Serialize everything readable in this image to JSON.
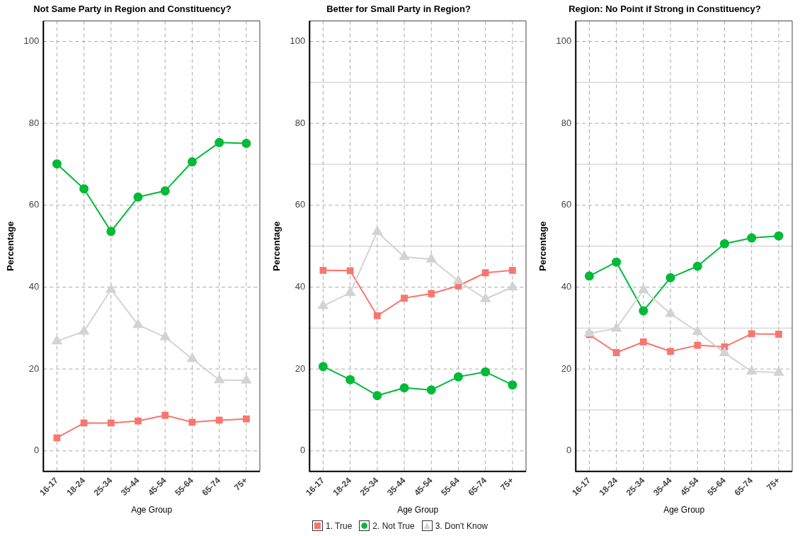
{
  "chart_data": [
    {
      "type": "line",
      "title": "Not Same Party in Region and Constituency?",
      "xlabel": "Age Group",
      "ylabel": "Percentage",
      "categories": [
        "16-17",
        "18-24",
        "25-34",
        "35-44",
        "45-54",
        "55-64",
        "65-74",
        "75+"
      ],
      "series": [
        {
          "name": "1. True",
          "color": "#f8766d",
          "marker": "square",
          "values": [
            3.2,
            6.8,
            6.8,
            7.3,
            8.7,
            7.0,
            7.5,
            7.8
          ]
        },
        {
          "name": "2. Not True",
          "color": "#00ba38",
          "marker": "circle",
          "values": [
            70.1,
            64.0,
            53.6,
            62.0,
            63.5,
            70.6,
            75.3,
            75.1
          ]
        },
        {
          "name": "3. Don't Know",
          "color": "#d3d3d3",
          "marker": "triangle",
          "values": [
            26.8,
            29.2,
            39.4,
            30.8,
            27.8,
            22.5,
            17.3,
            17.2
          ]
        }
      ],
      "ylim": [
        -5,
        105
      ],
      "yticks": [
        0,
        20,
        40,
        60,
        80,
        100
      ],
      "grid": true,
      "legend": "bottom"
    },
    {
      "type": "line",
      "title": "Better for Small Party in Region?",
      "xlabel": "Age Group",
      "ylabel": "Percentage",
      "categories": [
        "16-17",
        "18-24",
        "25-34",
        "35-44",
        "45-54",
        "55-64",
        "65-74",
        "75+"
      ],
      "series": [
        {
          "color": "#f8766d",
          "marker": "square",
          "values": [
            44.1,
            44.0,
            33.0,
            37.3,
            38.4,
            40.3,
            43.5,
            44.1
          ]
        },
        {
          "color": "#00ba38",
          "marker": "circle",
          "values": [
            20.6,
            17.4,
            13.5,
            15.4,
            14.9,
            18.1,
            19.3,
            16.1
          ]
        },
        {
          "color": "#d3d3d3",
          "marker": "triangle",
          "values": [
            35.4,
            38.6,
            53.5,
            47.4,
            46.8,
            41.5,
            37.1,
            40.0
          ]
        }
      ],
      "ylim": [
        -5,
        105
      ],
      "yticks": [
        0,
        {
          "value": 10,
          "label": null
        },
        20,
        {
          "value": 30,
          "label": null
        },
        40,
        {
          "value": 50,
          "label": null
        },
        60,
        {
          "value": 70,
          "label": null
        },
        80,
        {
          "value": 90,
          "label": null
        },
        100
      ],
      "grid": true
    },
    {
      "type": "line",
      "title": "Region: No Point if Strong in Constituency?",
      "xlabel": "Age Group",
      "ylabel": "Percentage",
      "categories": [
        "16-17",
        "18-24",
        "25-34",
        "35-44",
        "45-54",
        "55-64",
        "65-74",
        "75+"
      ],
      "series": [
        {
          "color": "#f8766d",
          "marker": "square",
          "values": [
            28.4,
            24.0,
            26.6,
            24.3,
            25.8,
            25.4,
            28.6,
            28.5
          ]
        },
        {
          "color": "#00ba38",
          "marker": "circle",
          "values": [
            42.7,
            46.1,
            34.2,
            42.3,
            45.1,
            50.6,
            52.0,
            52.5
          ]
        },
        {
          "color": "#d3d3d3",
          "marker": "triangle",
          "values": [
            28.7,
            29.9,
            39.3,
            33.5,
            29.1,
            23.9,
            19.4,
            19.1
          ]
        }
      ],
      "ylim": [
        -5,
        105
      ],
      "yticks": [
        0,
        {
          "value": 10,
          "label": null
        },
        20,
        {
          "value": 30,
          "label": null
        },
        40,
        {
          "value": 50,
          "label": null
        },
        60,
        {
          "value": 70,
          "label": null
        },
        80,
        {
          "value": 90,
          "label": null
        },
        100
      ],
      "grid": true
    }
  ]
}
